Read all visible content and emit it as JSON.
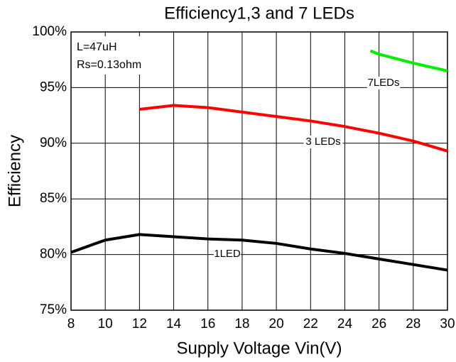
{
  "chart_data": {
    "type": "line",
    "title": "Efficiency1,3 and 7 LEDs",
    "x_label": "Supply Voltage Vin(V)",
    "y_label": "Efficiency",
    "annotations": [
      "L=47uH",
      "Rs=0.13ohm"
    ],
    "xlim": [
      8,
      30
    ],
    "xticks": [
      8,
      10,
      12,
      14,
      16,
      18,
      20,
      22,
      24,
      26,
      28,
      30
    ],
    "ylim": [
      75,
      100
    ],
    "yticks": [
      {
        "value": 75,
        "label": "75%"
      },
      {
        "value": 80,
        "label": "80%"
      },
      {
        "value": 85,
        "label": "85%"
      },
      {
        "value": 90,
        "label": "90%"
      },
      {
        "value": 95,
        "label": "95%"
      },
      {
        "value": 100,
        "label": "100%"
      }
    ],
    "grid": true,
    "series": [
      {
        "name": "1LED",
        "color": "#000000",
        "x": [
          8,
          10,
          12,
          14,
          16,
          18,
          20,
          22,
          24,
          26,
          28,
          30
        ],
        "values": [
          80.2,
          81.3,
          81.8,
          81.6,
          81.4,
          81.3,
          81.0,
          80.5,
          80.1,
          79.6,
          79.1,
          78.6
        ]
      },
      {
        "name": "3 LEDs",
        "color": "#ff0000",
        "x": [
          12,
          14,
          16,
          18,
          20,
          22,
          24,
          26,
          28,
          30
        ],
        "values": [
          93.05,
          93.4,
          93.2,
          92.8,
          92.4,
          92.0,
          91.5,
          90.9,
          90.2,
          89.3
        ]
      },
      {
        "name": "7LEDs",
        "color": "#00ee00",
        "x": [
          25.5,
          26,
          28,
          30
        ],
        "values": [
          98.3,
          98.0,
          97.2,
          96.5
        ]
      }
    ]
  }
}
